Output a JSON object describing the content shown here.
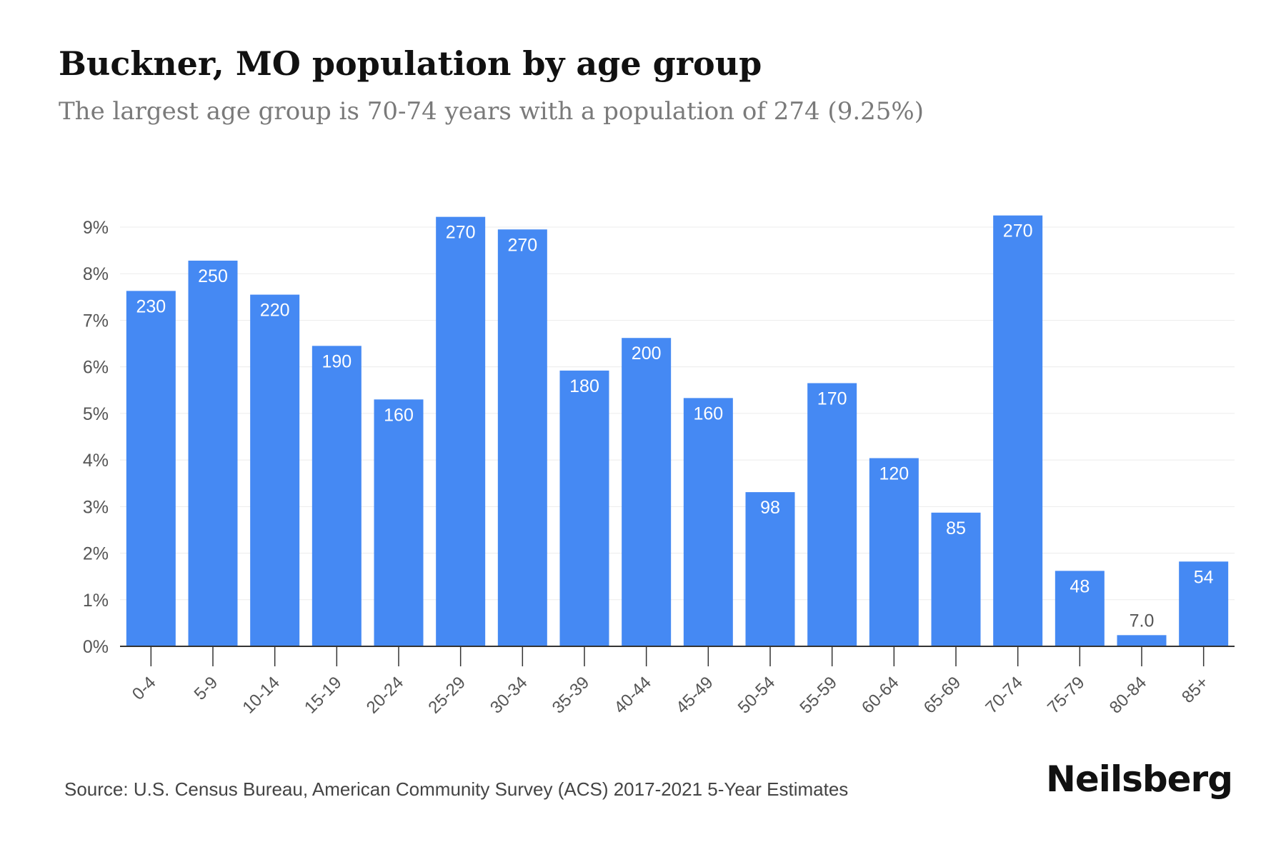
{
  "title": "Buckner, MO population by age group",
  "subtitle": "The largest age group is 70-74 years with a population of 274 (9.25%)",
  "source": "Source: U.S. Census Bureau, American Community Survey (ACS) 2017-2021 5-Year Estimates",
  "brand": "Neilsberg",
  "colors": {
    "bar": "#4589f3",
    "bar_label": "#ffffff",
    "small_bar_label": "#555555",
    "axis_text": "#555555",
    "grid": "#ececec",
    "axis": "#333333"
  },
  "chart_data": {
    "type": "bar",
    "categories": [
      "0-4",
      "5-9",
      "10-14",
      "15-19",
      "20-24",
      "25-29",
      "30-34",
      "35-39",
      "40-44",
      "45-49",
      "50-54",
      "55-59",
      "60-64",
      "65-69",
      "70-74",
      "75-79",
      "80-84",
      "85+"
    ],
    "values": [
      7.63,
      8.28,
      7.55,
      6.45,
      5.3,
      9.22,
      8.95,
      5.92,
      6.62,
      5.33,
      3.31,
      5.65,
      4.04,
      2.87,
      9.25,
      1.62,
      0.24,
      1.82
    ],
    "value_labels": [
      "230",
      "250",
      "220",
      "190",
      "160",
      "270",
      "270",
      "180",
      "200",
      "160",
      "98",
      "170",
      "120",
      "85",
      "270",
      "48",
      "7.0",
      "54"
    ],
    "y_ticks": [
      "0%",
      "1%",
      "2%",
      "3%",
      "4%",
      "5%",
      "6%",
      "7%",
      "8%",
      "9%"
    ],
    "ylim": [
      0,
      9
    ],
    "y_unit": "%",
    "grid": true
  }
}
